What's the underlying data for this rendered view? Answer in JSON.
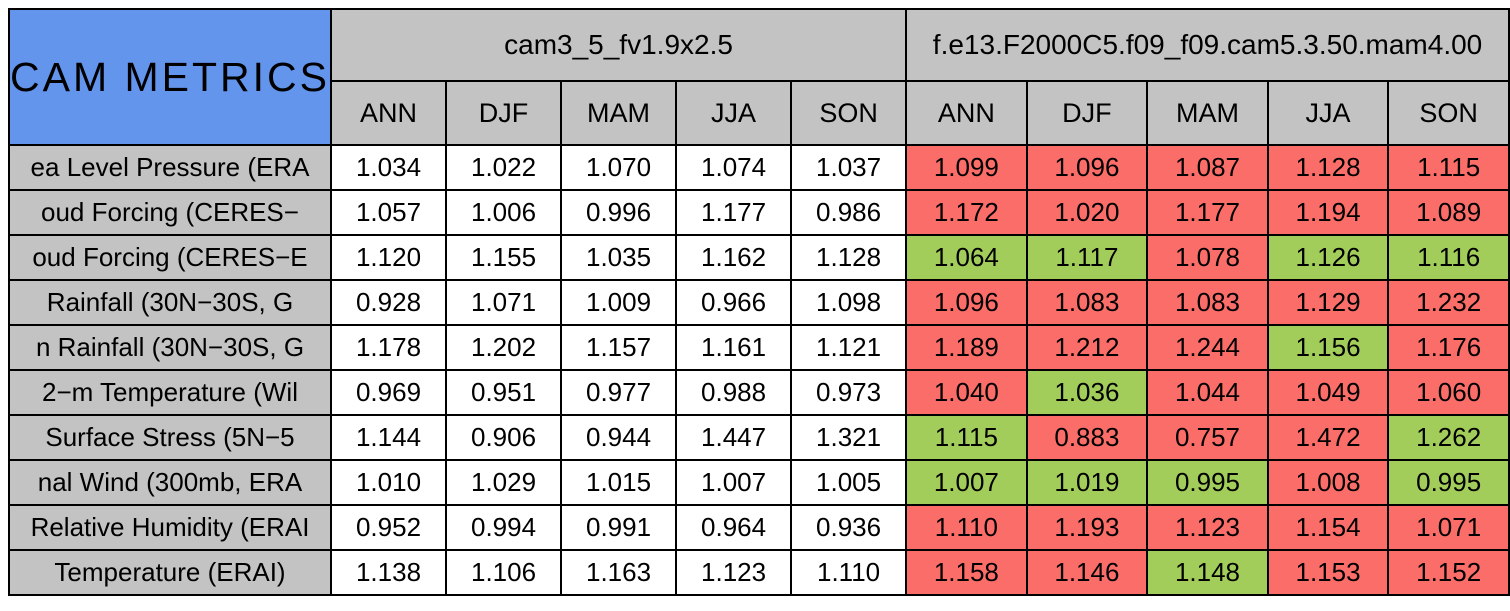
{
  "title": "CAM METRICS",
  "models": [
    {
      "name": "cam3_5_fv1.9x2.5"
    },
    {
      "name": "f.e13.F2000C5.f09_f09.cam5.3.50.mam4.00"
    }
  ],
  "colors": {
    "title_background": "#6495ED",
    "header_background": "#C3C3C3",
    "cell_red": "#FA6D68",
    "cell_green": "#A3CD5A",
    "cell_white": "#FFFFFF",
    "border": "#000000"
  },
  "chart_data": {
    "type": "table",
    "title": "CAM METRICS",
    "model_columns": [
      "cam3_5_fv1.9x2.5",
      "f.e13.F2000C5.f09_f09.cam5.3.50.mam4.00"
    ],
    "season_columns": [
      "ANN",
      "DJF",
      "MAM",
      "JJA",
      "SON"
    ],
    "model1_cell_color": "white",
    "model2_cell_colors_used": [
      "red",
      "green"
    ],
    "rows": [
      {
        "label": "ea Level Pressure (ERA",
        "model1_values": [
          "1.034",
          "1.022",
          "1.070",
          "1.074",
          "1.037"
        ],
        "model2_values": [
          "1.099",
          "1.096",
          "1.087",
          "1.128",
          "1.115"
        ],
        "model2_colors": [
          "red",
          "red",
          "red",
          "red",
          "red"
        ]
      },
      {
        "label": "oud Forcing (CERES−",
        "model1_values": [
          "1.057",
          "1.006",
          "0.996",
          "1.177",
          "0.986"
        ],
        "model2_values": [
          "1.172",
          "1.020",
          "1.177",
          "1.194",
          "1.089"
        ],
        "model2_colors": [
          "red",
          "red",
          "red",
          "red",
          "red"
        ]
      },
      {
        "label": "oud Forcing (CERES−E",
        "model1_values": [
          "1.120",
          "1.155",
          "1.035",
          "1.162",
          "1.128"
        ],
        "model2_values": [
          "1.064",
          "1.117",
          "1.078",
          "1.126",
          "1.116"
        ],
        "model2_colors": [
          "green",
          "green",
          "red",
          "green",
          "green"
        ]
      },
      {
        "label": "Rainfall (30N−30S, G",
        "model1_values": [
          "0.928",
          "1.071",
          "1.009",
          "0.966",
          "1.098"
        ],
        "model2_values": [
          "1.096",
          "1.083",
          "1.083",
          "1.129",
          "1.232"
        ],
        "model2_colors": [
          "red",
          "red",
          "red",
          "red",
          "red"
        ]
      },
      {
        "label": "n Rainfall (30N−30S, G",
        "model1_values": [
          "1.178",
          "1.202",
          "1.157",
          "1.161",
          "1.121"
        ],
        "model2_values": [
          "1.189",
          "1.212",
          "1.244",
          "1.156",
          "1.176"
        ],
        "model2_colors": [
          "red",
          "red",
          "red",
          "green",
          "red"
        ]
      },
      {
        "label": "2−m Temperature (Wil",
        "model1_values": [
          "0.969",
          "0.951",
          "0.977",
          "0.988",
          "0.973"
        ],
        "model2_values": [
          "1.040",
          "1.036",
          "1.044",
          "1.049",
          "1.060"
        ],
        "model2_colors": [
          "red",
          "green",
          "red",
          "red",
          "red"
        ]
      },
      {
        "label": "Surface Stress (5N−5",
        "model1_values": [
          "1.144",
          "0.906",
          "0.944",
          "1.447",
          "1.321"
        ],
        "model2_values": [
          "1.115",
          "0.883",
          "0.757",
          "1.472",
          "1.262"
        ],
        "model2_colors": [
          "green",
          "red",
          "red",
          "red",
          "green"
        ]
      },
      {
        "label": "nal Wind (300mb, ERA",
        "model1_values": [
          "1.010",
          "1.029",
          "1.015",
          "1.007",
          "1.005"
        ],
        "model2_values": [
          "1.007",
          "1.019",
          "0.995",
          "1.008",
          "0.995"
        ],
        "model2_colors": [
          "green",
          "green",
          "green",
          "red",
          "green"
        ]
      },
      {
        "label": "Relative Humidity (ERAI",
        "model1_values": [
          "0.952",
          "0.994",
          "0.991",
          "0.964",
          "0.936"
        ],
        "model2_values": [
          "1.110",
          "1.193",
          "1.123",
          "1.154",
          "1.071"
        ],
        "model2_colors": [
          "red",
          "red",
          "red",
          "red",
          "red"
        ]
      },
      {
        "label": "Temperature (ERAI)",
        "model1_values": [
          "1.138",
          "1.106",
          "1.163",
          "1.123",
          "1.110"
        ],
        "model2_values": [
          "1.158",
          "1.146",
          "1.148",
          "1.153",
          "1.152"
        ],
        "model2_colors": [
          "red",
          "red",
          "green",
          "red",
          "red"
        ]
      }
    ]
  }
}
